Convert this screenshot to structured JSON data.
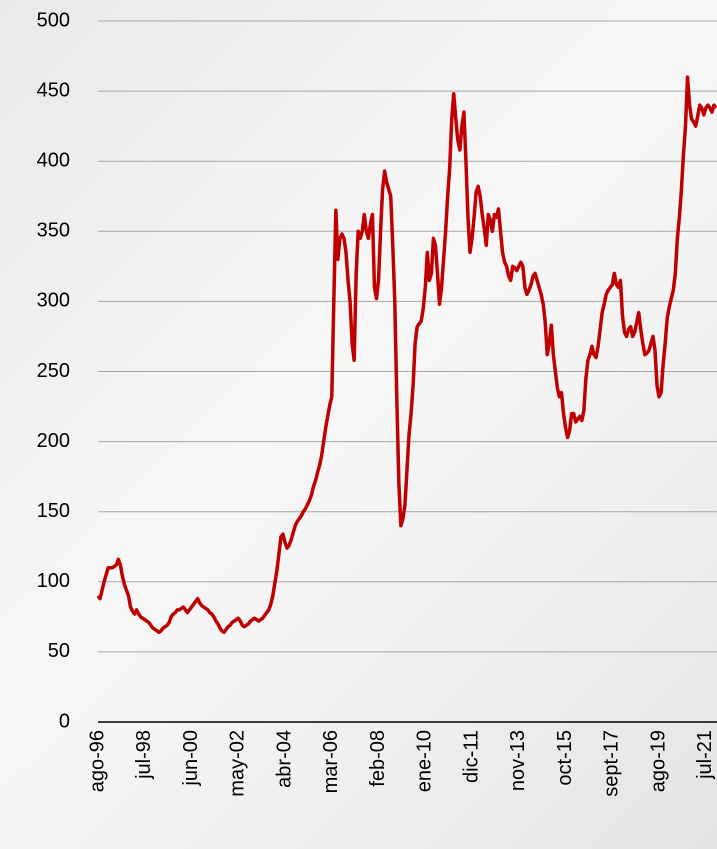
{
  "chart_data": {
    "type": "line",
    "categories": [
      "ago-96",
      null,
      null,
      null,
      null,
      null,
      null,
      null,
      null,
      null,
      null,
      null,
      null,
      null,
      null,
      null,
      null,
      null,
      null,
      null,
      null,
      null,
      null,
      "jul-98",
      null,
      null,
      null,
      null,
      null,
      null,
      null,
      null,
      null,
      null,
      null,
      null,
      null,
      null,
      null,
      null,
      null,
      null,
      null,
      null,
      null,
      null,
      "jun-00",
      null,
      null,
      null,
      null,
      null,
      null,
      null,
      null,
      null,
      null,
      null,
      null,
      null,
      null,
      null,
      null,
      null,
      null,
      null,
      null,
      null,
      null,
      "may-02",
      null,
      null,
      null,
      null,
      null,
      null,
      null,
      null,
      null,
      null,
      null,
      null,
      null,
      null,
      null,
      null,
      null,
      null,
      null,
      null,
      null,
      null,
      "abr-04",
      null,
      null,
      null,
      null,
      null,
      null,
      null,
      null,
      null,
      null,
      null,
      null,
      null,
      null,
      null,
      null,
      null,
      null,
      null,
      null,
      null,
      null,
      "mar-06",
      null,
      null,
      null,
      null,
      null,
      null,
      null,
      null,
      null,
      null,
      null,
      null,
      null,
      null,
      null,
      null,
      null,
      null,
      null,
      null,
      null,
      null,
      "feb-08",
      null,
      null,
      null,
      null,
      null,
      null,
      null,
      null,
      null,
      null,
      null,
      null,
      null,
      null,
      null,
      null,
      null,
      null,
      null,
      null,
      null,
      null,
      "ene-10",
      null,
      null,
      null,
      null,
      null,
      null,
      null,
      null,
      null,
      null,
      null,
      null,
      null,
      null,
      null,
      null,
      null,
      null,
      null,
      null,
      null,
      null,
      "dic-11",
      null,
      null,
      null,
      null,
      null,
      null,
      null,
      null,
      null,
      null,
      null,
      null,
      null,
      null,
      null,
      null,
      null,
      null,
      null,
      null,
      null,
      null,
      "nov-13",
      null,
      null,
      null,
      null,
      null,
      null,
      null,
      null,
      null,
      null,
      null,
      null,
      null,
      null,
      null,
      null,
      null,
      null,
      null,
      null,
      null,
      null,
      "oct-15",
      null,
      null,
      null,
      null,
      null,
      null,
      null,
      null,
      null,
      null,
      null,
      null,
      null,
      null,
      null,
      null,
      null,
      null,
      null,
      null,
      null,
      null,
      "sept-17",
      null,
      null,
      null,
      null,
      null,
      null,
      null,
      null,
      null,
      null,
      null,
      null,
      null,
      null,
      null,
      null,
      null,
      null,
      null,
      null,
      null,
      null,
      "ago-19",
      null,
      null,
      null,
      null,
      null,
      null,
      null,
      null,
      null,
      null,
      null,
      null,
      null,
      null,
      null,
      null,
      null,
      null,
      null,
      null,
      null,
      null,
      "jul-21",
      null,
      null,
      null,
      null,
      null
    ],
    "series": [
      {
        "color": "#c00000",
        "values": [
          90,
          88,
          94,
          100,
          105,
          110,
          110,
          110,
          111,
          112,
          116,
          112,
          104,
          98,
          94,
          90,
          82,
          79,
          77,
          80,
          77,
          75,
          74,
          73,
          72,
          71,
          69,
          67,
          66,
          65,
          64,
          65,
          67,
          68,
          69,
          71,
          75,
          77,
          78,
          80,
          80,
          81,
          82,
          80,
          78,
          80,
          82,
          84,
          86,
          88,
          85,
          83,
          82,
          81,
          80,
          78,
          77,
          75,
          72,
          70,
          67,
          65,
          64,
          66,
          68,
          69,
          71,
          72,
          73,
          74,
          72,
          69,
          68,
          69,
          70,
          72,
          73,
          74,
          73,
          72,
          73,
          74,
          76,
          78,
          80,
          84,
          90,
          99,
          108,
          120,
          132,
          134,
          128,
          124,
          126,
          130,
          135,
          140,
          143,
          145,
          147,
          150,
          152,
          155,
          158,
          162,
          168,
          172,
          178,
          183,
          190,
          200,
          210,
          218,
          226,
          232,
          300,
          365,
          330,
          345,
          348,
          345,
          335,
          315,
          300,
          270,
          258,
          320,
          350,
          345,
          350,
          362,
          350,
          345,
          355,
          362,
          310,
          302,
          315,
          350,
          380,
          393,
          385,
          380,
          375,
          340,
          300,
          230,
          170,
          140,
          145,
          155,
          180,
          205,
          220,
          240,
          270,
          282,
          284,
          286,
          295,
          310,
          335,
          315,
          320,
          345,
          340,
          320,
          298,
          310,
          330,
          350,
          375,
          395,
          430,
          448,
          430,
          415,
          408,
          425,
          435,
          400,
          360,
          335,
          345,
          360,
          378,
          382,
          375,
          362,
          352,
          340,
          362,
          358,
          350,
          362,
          360,
          366,
          350,
          335,
          328,
          325,
          318,
          315,
          325,
          324,
          322,
          325,
          328,
          325,
          310,
          305,
          308,
          312,
          318,
          320,
          315,
          310,
          305,
          298,
          285,
          262,
          270,
          283,
          262,
          250,
          238,
          232,
          235,
          220,
          210,
          203,
          208,
          220,
          220,
          214,
          216,
          218,
          215,
          222,
          245,
          258,
          262,
          268,
          262,
          260,
          268,
          280,
          292,
          298,
          305,
          308,
          310,
          312,
          320,
          312,
          310,
          315,
          290,
          278,
          275,
          280,
          282,
          275,
          278,
          285,
          292,
          280,
          270,
          262,
          263,
          265,
          270,
          275,
          265,
          240,
          232,
          235,
          255,
          270,
          288,
          296,
          302,
          308,
          320,
          345,
          360,
          380,
          405,
          425,
          460,
          440,
          430,
          428,
          425,
          432,
          440,
          438,
          433,
          438,
          440,
          438,
          435,
          440,
          438
        ]
      }
    ],
    "ylim": [
      0,
      500
    ],
    "yticks": [
      0,
      50,
      100,
      150,
      200,
      250,
      300,
      350,
      400,
      450,
      500
    ],
    "grid": true
  }
}
